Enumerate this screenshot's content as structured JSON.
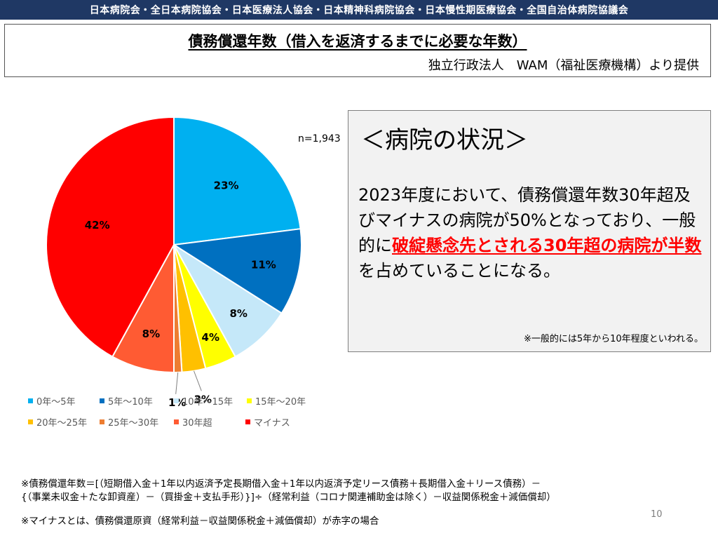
{
  "header": {
    "banner": "日本病院会・全日本病院協会・日本医療法人協会・日本精神科病院協会・日本慢性期医療協会・全国自治体病院協議会"
  },
  "title": {
    "main": "債務償還年数（借入を返済するまでに必要な年数）",
    "source": "独立行政法人　WAM（福祉医療機構）より提供"
  },
  "chart_data": {
    "type": "pie",
    "n_label": "n=1,943",
    "slices": [
      {
        "label": "0年～5年",
        "value": 23,
        "display": "23%",
        "color": "#00b0f0"
      },
      {
        "label": "5年～10年",
        "value": 11,
        "display": "11%",
        "color": "#0070c0"
      },
      {
        "label": "10年～15年",
        "value": 8,
        "display": "8%",
        "color": "#c5e8f9"
      },
      {
        "label": "15年～20年",
        "value": 4,
        "display": "4%",
        "color": "#ffff00"
      },
      {
        "label": "20年～25年",
        "value": 3,
        "display": "3%",
        "color": "#ffc000"
      },
      {
        "label": "25年～30年",
        "value": 1,
        "display": "1%",
        "color": "#ed7d31"
      },
      {
        "label": "30年超",
        "value": 8,
        "display": "8%",
        "color": "#ff5b33"
      },
      {
        "label": "マイナス",
        "value": 42,
        "display": "42%",
        "color": "#ff0000"
      }
    ],
    "legend_placement": "bottom"
  },
  "status": {
    "heading": "＜病院の状況＞",
    "body_1": "2023年度において、債務償還年数30年超及びマイナスの病院が50%となっており、一般的に",
    "body_highlight": "破綻懸念先とされる30年超の病院が半数",
    "body_2": "を占めていることになる。",
    "note": "※一般的には5年から10年程度といわれる。"
  },
  "footnotes": {
    "formula_1": "※債務償還年数＝[（短期借入金＋1年以内返済予定長期借入金＋1年以内返済予定リース債務＋長期借入金＋リース債務）－",
    "formula_2": "{（事業未収金＋たな卸資産）－（買掛金＋支払手形）}]÷（経常利益（コロナ関連補助金は除く）－収益関係税金＋減価償却）",
    "minus_note": "※マイナスとは、債務償還原資（経常利益－収益関係税金＋減価償却）が赤字の場合"
  },
  "page_number": "10"
}
